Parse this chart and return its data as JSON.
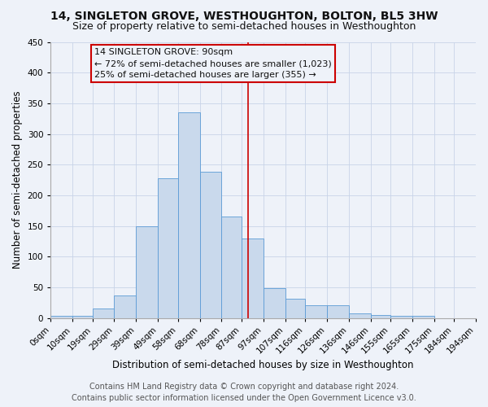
{
  "title": "14, SINGLETON GROVE, WESTHOUGHTON, BOLTON, BL5 3HW",
  "subtitle": "Size of property relative to semi-detached houses in Westhoughton",
  "xlabel": "Distribution of semi-detached houses by size in Westhoughton",
  "ylabel": "Number of semi-detached properties",
  "footer_line1": "Contains HM Land Registry data © Crown copyright and database right 2024.",
  "footer_line2": "Contains public sector information licensed under the Open Government Licence v3.0.",
  "annotation_title": "14 SINGLETON GROVE: 90sqm",
  "annotation_line1": "← 72% of semi-detached houses are smaller (1,023)",
  "annotation_line2": "25% of semi-detached houses are larger (355) →",
  "bin_labels": [
    "0sqm",
    "10sqm",
    "19sqm",
    "29sqm",
    "39sqm",
    "49sqm",
    "58sqm",
    "68sqm",
    "78sqm",
    "87sqm",
    "97sqm",
    "107sqm",
    "116sqm",
    "126sqm",
    "136sqm",
    "146sqm",
    "155sqm",
    "165sqm",
    "175sqm",
    "184sqm",
    "194sqm"
  ],
  "bar_values": [
    3,
    3,
    15,
    37,
    150,
    228,
    335,
    238,
    165,
    130,
    48,
    31,
    21,
    20,
    7,
    5,
    3,
    4
  ],
  "bar_color": "#c9d9ec",
  "bar_edge_color": "#5b9bd5",
  "bin_edges": [
    0,
    10,
    19,
    29,
    39,
    49,
    58,
    68,
    78,
    87,
    97,
    107,
    116,
    126,
    136,
    146,
    155,
    165,
    175,
    184,
    194
  ],
  "vline_x": 90,
  "vline_color": "#cc0000",
  "ylim": [
    0,
    450
  ],
  "yticks": [
    0,
    50,
    100,
    150,
    200,
    250,
    300,
    350,
    400,
    450
  ],
  "grid_color": "#c8d4e8",
  "bg_color": "#eef2f9",
  "title_fontsize": 10,
  "subtitle_fontsize": 9,
  "axis_label_fontsize": 8.5,
  "tick_fontsize": 7.5,
  "footer_fontsize": 7,
  "annotation_fontsize": 8
}
